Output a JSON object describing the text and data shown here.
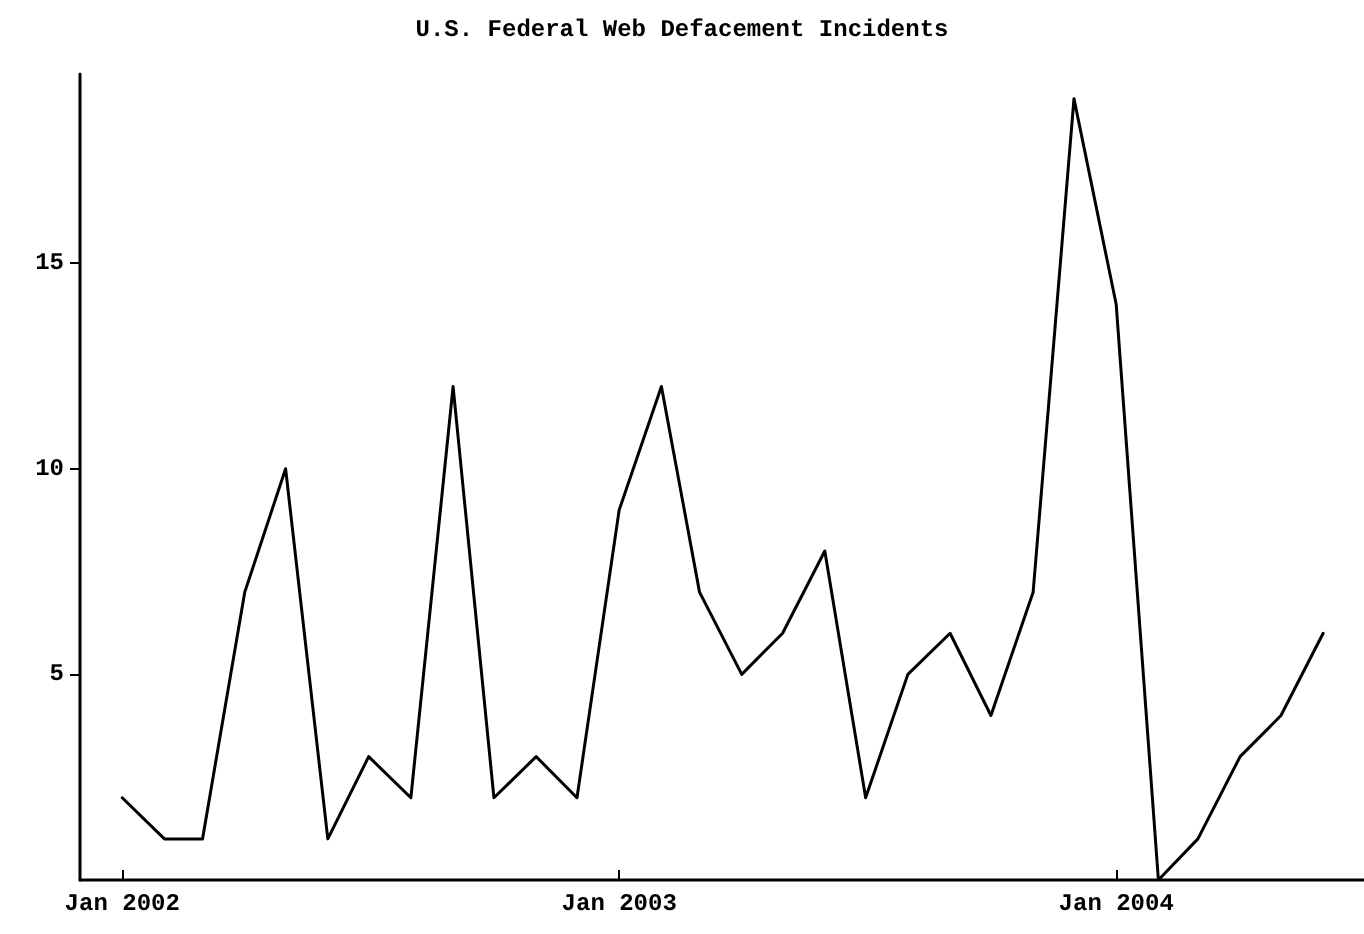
{
  "chart_data": {
    "type": "line",
    "title": "U.S. Federal Web Defacement Incidents",
    "x": [
      "2002-01",
      "2002-02",
      "2002-03",
      "2002-04",
      "2002-05",
      "2002-06",
      "2002-07",
      "2002-08",
      "2002-09",
      "2002-10",
      "2002-11",
      "2002-12",
      "2003-01",
      "2003-02",
      "2003-03",
      "2003-04",
      "2003-05",
      "2003-06",
      "2003-07",
      "2003-08",
      "2003-09",
      "2003-10",
      "2003-11",
      "2003-12",
      "2004-01",
      "2004-02",
      "2004-03",
      "2004-04",
      "2004-05",
      "2004-06"
    ],
    "series": [
      {
        "color": "#000000",
        "values": [
          2,
          1,
          1,
          7,
          10,
          1,
          3,
          2,
          12,
          2,
          3,
          2,
          9,
          12,
          7,
          5,
          6,
          8,
          2,
          5,
          6,
          4,
          7,
          19,
          14,
          0,
          1,
          3,
          4,
          6
        ]
      }
    ],
    "xlim": [
      "2001-12",
      "2004-07"
    ],
    "xticks": [
      {
        "value": "2002-01",
        "label": "Jan 2002"
      },
      {
        "value": "2003-01",
        "label": "Jan 2003"
      },
      {
        "value": "2004-01",
        "label": "Jan 2004"
      }
    ],
    "ylim": [
      0,
      19.6
    ],
    "yticks": [
      5,
      10,
      15
    ],
    "grid": false,
    "marker": "none",
    "line_style": "solid"
  }
}
